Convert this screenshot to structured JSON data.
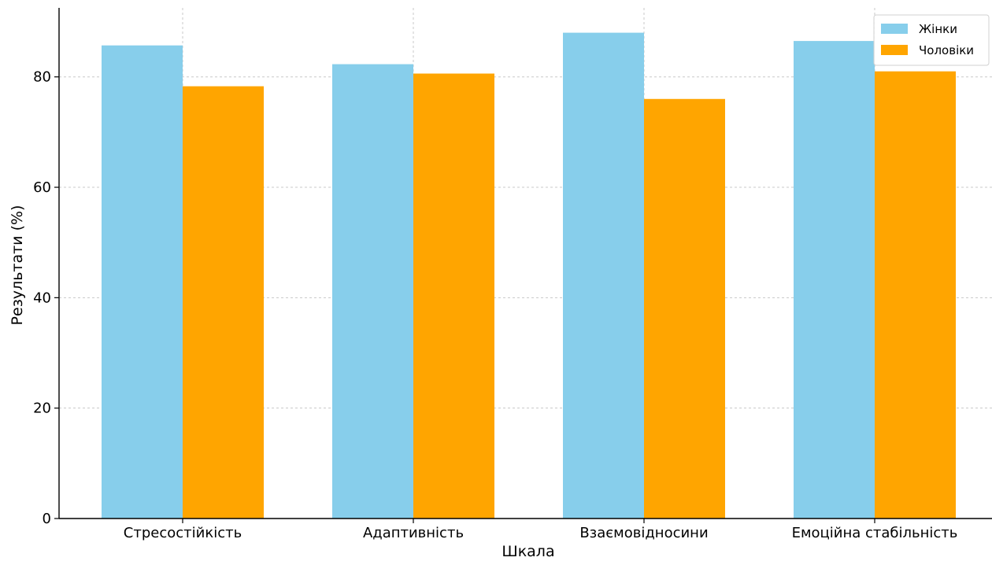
{
  "chart_data": {
    "type": "bar",
    "categories": [
      "Стресостійкість",
      "Адаптивність",
      "Взаємовідносини",
      "Емоційна стабільність"
    ],
    "series": [
      {
        "name": "Жінки",
        "values": [
          85.7,
          82.3,
          88.0,
          86.5
        ],
        "color": "#87ceeb"
      },
      {
        "name": "Чоловіки",
        "values": [
          78.3,
          80.6,
          76.0,
          81.0
        ],
        "color": "#ffa500"
      }
    ],
    "xlabel": "Шкала",
    "ylabel": "Результати (%)",
    "ylim": [
      0,
      92.5
    ],
    "yticks": [
      0,
      20,
      40,
      60,
      80
    ],
    "grid": true,
    "legend_position": "top-right"
  }
}
